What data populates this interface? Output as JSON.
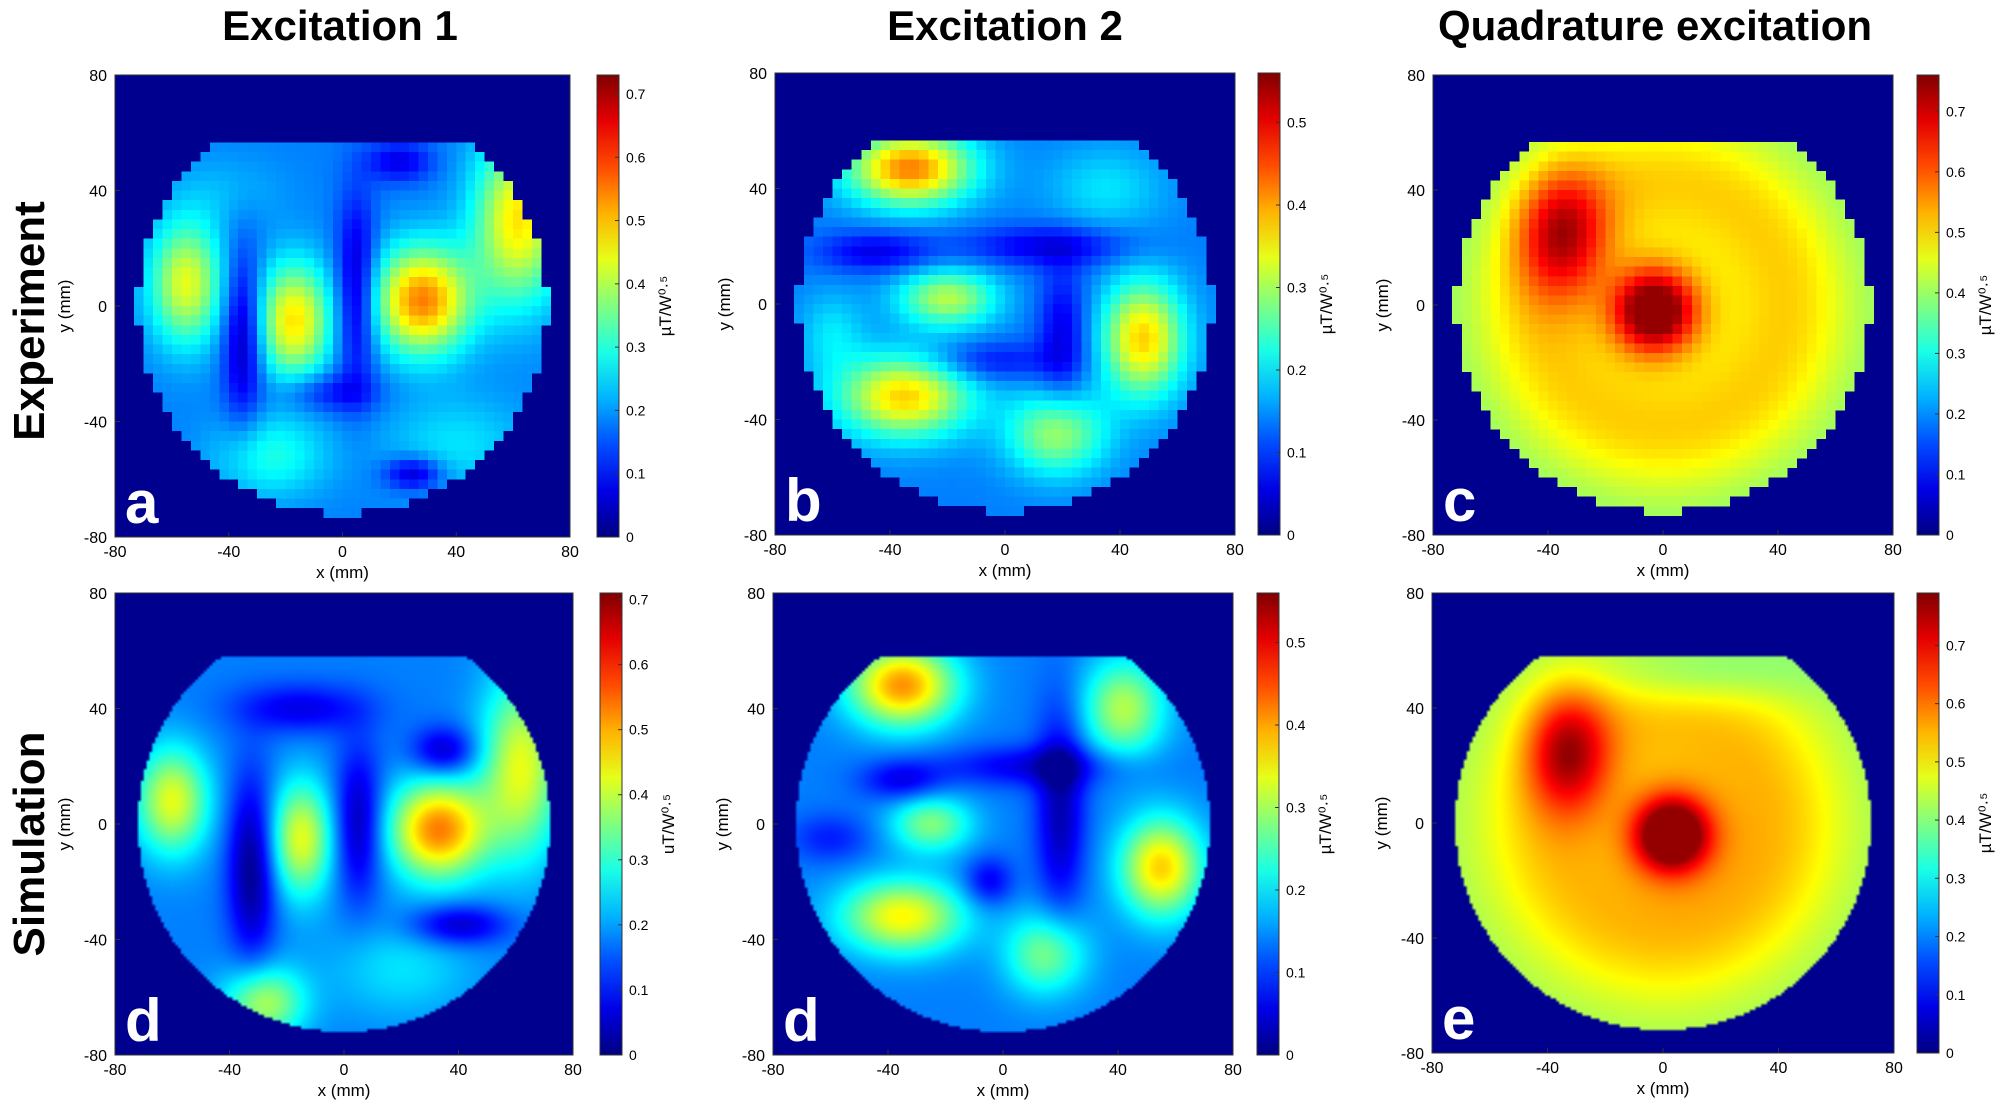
{
  "column_titles": [
    "Excitation 1",
    "Excitation 2",
    "Quadrature excitation"
  ],
  "row_titles": [
    "Experiment",
    "Simulation"
  ],
  "chart_data": [
    {
      "type": "heatmap",
      "panel_letter": "a",
      "row": "Experiment",
      "column": "Excitation 1",
      "xlabel": "x (mm)",
      "ylabel": "y (mm)",
      "xlim": [
        -80,
        80
      ],
      "ylim": [
        -80,
        80
      ],
      "x_ticks": [
        "-80",
        "-40",
        "0",
        "40",
        "80"
      ],
      "y_ticks": [
        "-80",
        "-40",
        "0",
        "40",
        "80"
      ],
      "colorbar_label": "µT/W⁰·⁵",
      "colorbar_range": [
        0,
        0.73
      ],
      "colorbar_ticks": [
        "0",
        "0.1",
        "0.2",
        "0.3",
        "0.4",
        "0.5",
        "0.6",
        "0.7"
      ],
      "pixelated": true,
      "background": 0.05,
      "hotspots": [
        {
          "x": -55,
          "y": 8,
          "sx": 9,
          "sy": 15,
          "v": 0.35
        },
        {
          "x": -17,
          "y": -5,
          "sx": 9,
          "sy": 14,
          "v": 0.4
        },
        {
          "x": 28,
          "y": 2,
          "sx": 12,
          "sy": 13,
          "v": 0.5
        },
        {
          "x": 62,
          "y": 30,
          "sx": 11,
          "sy": 20,
          "v": 0.4
        },
        {
          "x": -25,
          "y": -52,
          "sx": 14,
          "sy": 10,
          "v": 0.15
        },
        {
          "x": 40,
          "y": -48,
          "sx": 18,
          "sy": 12,
          "v": 0.1
        },
        {
          "x": -40,
          "y": 40,
          "sx": 14,
          "sy": 9,
          "v": 0.05
        }
      ],
      "cold_spots": [
        {
          "x": -35,
          "y": -10,
          "sx": 5,
          "sy": 20,
          "v": 0.22
        },
        {
          "x": 5,
          "y": 5,
          "sx": 5,
          "sy": 22,
          "v": 0.22
        },
        {
          "x": 20,
          "y": 50,
          "sx": 8,
          "sy": 5,
          "v": 0.15
        },
        {
          "x": -5,
          "y": -30,
          "sx": 12,
          "sy": 5,
          "v": 0.12
        },
        {
          "x": 25,
          "y": -58,
          "sx": 7,
          "sy": 4,
          "v": 0.2
        }
      ]
    },
    {
      "type": "heatmap",
      "panel_letter": "b",
      "row": "Experiment",
      "column": "Excitation 2",
      "xlabel": "x (mm)",
      "ylabel": "y (mm)",
      "xlim": [
        -80,
        80
      ],
      "ylim": [
        -80,
        80
      ],
      "x_ticks": [
        "-80",
        "-40",
        "0",
        "40",
        "80"
      ],
      "y_ticks": [
        "-80",
        "-40",
        "0",
        "40",
        "80"
      ],
      "colorbar_label": "µT/W⁰·⁵",
      "colorbar_range": [
        0,
        0.56
      ],
      "colorbar_ticks": [
        "0",
        "0.1",
        "0.2",
        "0.3",
        "0.4",
        "0.5"
      ],
      "pixelated": true,
      "background": 0.05,
      "hotspots": [
        {
          "x": -33,
          "y": 47,
          "sx": 15,
          "sy": 9,
          "v": 0.5
        },
        {
          "x": -20,
          "y": 2,
          "sx": 12,
          "sy": 7,
          "v": 0.3
        },
        {
          "x": 48,
          "y": -12,
          "sx": 10,
          "sy": 14,
          "v": 0.42
        },
        {
          "x": -35,
          "y": -32,
          "sx": 16,
          "sy": 10,
          "v": 0.42
        },
        {
          "x": 18,
          "y": -45,
          "sx": 12,
          "sy": 10,
          "v": 0.28
        },
        {
          "x": 35,
          "y": 40,
          "sx": 14,
          "sy": 10,
          "v": 0.1
        },
        {
          "x": -60,
          "y": -10,
          "sx": 8,
          "sy": 10,
          "v": 0.1
        }
      ],
      "cold_spots": [
        {
          "x": 15,
          "y": 20,
          "sx": 20,
          "sy": 5,
          "v": 0.15
        },
        {
          "x": 20,
          "y": -10,
          "sx": 6,
          "sy": 16,
          "v": 0.15
        },
        {
          "x": -45,
          "y": 18,
          "sx": 14,
          "sy": 5,
          "v": 0.15
        },
        {
          "x": -5,
          "y": -20,
          "sx": 16,
          "sy": 5,
          "v": 0.12
        }
      ]
    },
    {
      "type": "heatmap",
      "panel_letter": "c",
      "row": "Experiment",
      "column": "Quadrature excitation",
      "xlabel": "x (mm)",
      "ylabel": "y (mm)",
      "xlim": [
        -80,
        80
      ],
      "ylim": [
        -80,
        80
      ],
      "x_ticks": [
        "-80",
        "-40",
        "0",
        "40",
        "80"
      ],
      "y_ticks": [
        "-80",
        "-40",
        "0",
        "40",
        "80"
      ],
      "colorbar_label": "µT/W⁰·⁵",
      "colorbar_range": [
        0,
        0.76
      ],
      "colorbar_ticks": [
        "0",
        "0.1",
        "0.2",
        "0.3",
        "0.4",
        "0.5",
        "0.6",
        "0.7"
      ],
      "pixelated": true,
      "background": 0.3,
      "ring": {
        "r": 45,
        "w": 16,
        "v": 0.15
      },
      "hotspots": [
        {
          "x": -3,
          "y": -2,
          "sx": 10,
          "sy": 10,
          "v": 0.48
        },
        {
          "x": -35,
          "y": 25,
          "sx": 11,
          "sy": 16,
          "v": 0.3
        }
      ],
      "cold_spots": [
        {
          "x": 0,
          "y": 0,
          "sx": 24,
          "sy": 24,
          "v": -0.12
        }
      ]
    },
    {
      "type": "heatmap",
      "panel_letter": "d",
      "row": "Simulation",
      "column": "Excitation 1",
      "xlabel": "x (mm)",
      "ylabel": "y (mm)",
      "xlim": [
        -80,
        80
      ],
      "ylim": [
        -80,
        80
      ],
      "x_ticks": [
        "-80",
        "-40",
        "0",
        "40",
        "80"
      ],
      "y_ticks": [
        "-80",
        "-40",
        "0",
        "40",
        "80"
      ],
      "colorbar_label": "uT/W⁰·⁵",
      "colorbar_range": [
        0,
        0.71
      ],
      "colorbar_ticks": [
        "0",
        "0.1",
        "0.2",
        "0.3",
        "0.4",
        "0.5",
        "0.6",
        "0.7"
      ],
      "pixelated": false,
      "background": 0.05,
      "hotspots": [
        {
          "x": -60,
          "y": 8,
          "sx": 9,
          "sy": 13,
          "v": 0.35
        },
        {
          "x": -15,
          "y": -5,
          "sx": 8,
          "sy": 14,
          "v": 0.35
        },
        {
          "x": 33,
          "y": -2,
          "sx": 12,
          "sy": 12,
          "v": 0.5
        },
        {
          "x": 62,
          "y": 20,
          "sx": 10,
          "sy": 22,
          "v": 0.35
        },
        {
          "x": -28,
          "y": -62,
          "sx": 10,
          "sy": 9,
          "v": 0.3
        },
        {
          "x": 20,
          "y": -50,
          "sx": 18,
          "sy": 12,
          "v": 0.1
        }
      ],
      "cold_spots": [
        {
          "x": -32,
          "y": -15,
          "sx": 6,
          "sy": 22,
          "v": 0.25
        },
        {
          "x": 5,
          "y": 0,
          "sx": 6,
          "sy": 18,
          "v": 0.22
        },
        {
          "x": 35,
          "y": 25,
          "sx": 8,
          "sy": 6,
          "v": 0.2
        },
        {
          "x": -15,
          "y": 40,
          "sx": 16,
          "sy": 6,
          "v": 0.15
        },
        {
          "x": 40,
          "y": -35,
          "sx": 12,
          "sy": 5,
          "v": 0.2
        }
      ]
    },
    {
      "type": "heatmap",
      "panel_letter": "d",
      "row": "Simulation",
      "column": "Excitation 2",
      "xlabel": "x (mm)",
      "ylabel": "y (mm)",
      "xlim": [
        -80,
        80
      ],
      "ylim": [
        -80,
        80
      ],
      "x_ticks": [
        "-80",
        "-40",
        "0",
        "40",
        "80"
      ],
      "y_ticks": [
        "-80",
        "-40",
        "0",
        "40",
        "80"
      ],
      "colorbar_label": "µT/W⁰·⁵",
      "colorbar_range": [
        0,
        0.56
      ],
      "colorbar_ticks": [
        "0",
        "0.1",
        "0.2",
        "0.3",
        "0.4",
        "0.5"
      ],
      "pixelated": false,
      "background": 0.05,
      "hotspots": [
        {
          "x": -35,
          "y": 48,
          "sx": 13,
          "sy": 10,
          "v": 0.48
        },
        {
          "x": 42,
          "y": 40,
          "sx": 10,
          "sy": 12,
          "v": 0.3
        },
        {
          "x": -25,
          "y": 0,
          "sx": 10,
          "sy": 7,
          "v": 0.25
        },
        {
          "x": 55,
          "y": -15,
          "sx": 10,
          "sy": 12,
          "v": 0.42
        },
        {
          "x": -35,
          "y": -32,
          "sx": 15,
          "sy": 9,
          "v": 0.38
        },
        {
          "x": 15,
          "y": -45,
          "sx": 10,
          "sy": 10,
          "v": 0.25
        }
      ],
      "cold_spots": [
        {
          "x": 20,
          "y": 5,
          "sx": 6,
          "sy": 25,
          "v": 0.2
        },
        {
          "x": 10,
          "y": 20,
          "sx": 22,
          "sy": 5,
          "v": 0.15
        },
        {
          "x": -35,
          "y": 15,
          "sx": 10,
          "sy": 5,
          "v": 0.15
        },
        {
          "x": -5,
          "y": -20,
          "sx": 6,
          "sy": 6,
          "v": 0.15
        },
        {
          "x": -60,
          "y": -5,
          "sx": 10,
          "sy": 6,
          "v": 0.1
        }
      ]
    },
    {
      "type": "heatmap",
      "panel_letter": "e",
      "row": "Simulation",
      "column": "Quadrature excitation",
      "xlabel": "x (mm)",
      "ylabel": "y (mm)",
      "xlim": [
        -80,
        80
      ],
      "ylim": [
        -80,
        80
      ],
      "x_ticks": [
        "-80",
        "-40",
        "0",
        "40",
        "80"
      ],
      "y_ticks": [
        "-80",
        "-40",
        "0",
        "40",
        "80"
      ],
      "colorbar_label": "µT/W⁰·⁵",
      "colorbar_range": [
        0,
        0.79
      ],
      "colorbar_ticks": [
        "0",
        "0.1",
        "0.2",
        "0.3",
        "0.4",
        "0.5",
        "0.6",
        "0.7"
      ],
      "pixelated": false,
      "background": 0.32,
      "ring": {
        "r": 40,
        "w": 18,
        "v": 0.15
      },
      "hotspots": [
        {
          "x": 3,
          "y": -4,
          "sx": 9,
          "sy": 9,
          "v": 0.5
        },
        {
          "x": -33,
          "y": 25,
          "sx": 10,
          "sy": 15,
          "v": 0.3
        }
      ],
      "cold_spots": [
        {
          "x": 2,
          "y": -2,
          "sx": 20,
          "sy": 20,
          "v": -0.15
        },
        {
          "x": 10,
          "y": 52,
          "sx": 25,
          "sy": 8,
          "v": 0.1
        }
      ]
    }
  ]
}
